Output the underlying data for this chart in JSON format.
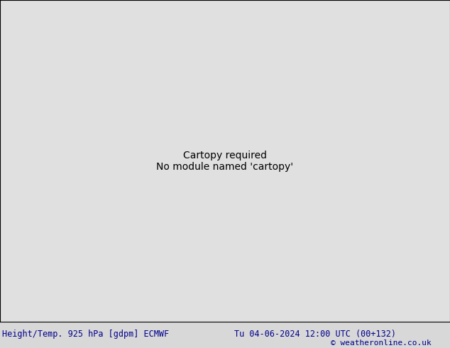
{
  "title_left": "Height/Temp. 925 hPa [gdpm] ECMWF",
  "title_right": "Tu 04-06-2024 12:00 UTC (00+132)",
  "copyright": "© weatheronline.co.uk",
  "bottom_bar_color": "#d8d8d8",
  "text_color": "#00008B",
  "title_fontsize": 8.5,
  "copyright_fontsize": 8,
  "figsize": [
    6.34,
    4.9
  ],
  "dpi": 100,
  "ocean_color": "#e0e0e0",
  "land_color": "#e8e8e8",
  "green_fill": "#90EE90",
  "gray_land_mountain": "#b0b0b0",
  "height_contour_color": "#000000",
  "temp_neg_color": "#00CCCC",
  "temp_pos_color": "#FFA500",
  "temp_warm_color": "#90EE90",
  "temp_hot_color": "#FF00FF",
  "temp_zero_color": "#FFA500"
}
